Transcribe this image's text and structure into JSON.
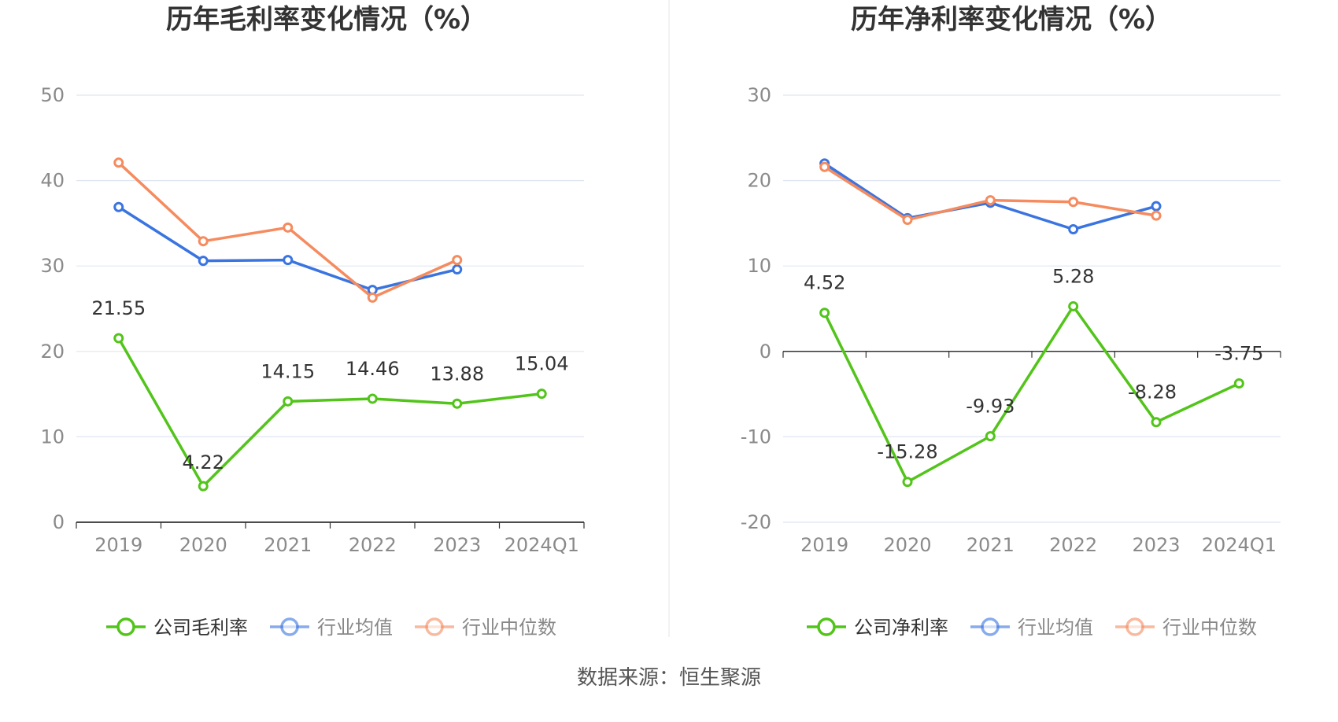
{
  "source_note": "数据来源：恒生聚源",
  "chart_data": [
    {
      "type": "line",
      "title": "历年毛利率变化情况（%）",
      "categories": [
        "2019",
        "2020",
        "2021",
        "2022",
        "2023",
        "2024Q1"
      ],
      "yticks": [
        "50",
        "40",
        "30",
        "20",
        "10",
        "0"
      ],
      "ylim": [
        0,
        50
      ],
      "grid": true,
      "legend_position": "bottom",
      "series": [
        {
          "name": "公司毛利率",
          "color": "#52c41a",
          "values": [
            21.55,
            4.22,
            14.15,
            14.46,
            13.88,
            15.04
          ],
          "labels": [
            "21.55",
            "4.22",
            "14.15",
            "14.46",
            "13.88",
            "15.04"
          ]
        },
        {
          "name": "行业均值",
          "color": "#3a74e0",
          "values": [
            36.9,
            30.6,
            30.7,
            27.2,
            29.6,
            null
          ]
        },
        {
          "name": "行业中位数",
          "color": "#f58b5e",
          "values": [
            42.1,
            32.9,
            34.5,
            26.3,
            30.7,
            null
          ]
        }
      ]
    },
    {
      "type": "line",
      "title": "历年净利率变化情况（%）",
      "categories": [
        "2019",
        "2020",
        "2021",
        "2022",
        "2023",
        "2024Q1"
      ],
      "yticks": [
        "30",
        "20",
        "10",
        "0",
        "-10",
        "-20"
      ],
      "ylim": [
        -20,
        30
      ],
      "grid": true,
      "legend_position": "bottom",
      "series": [
        {
          "name": "公司净利率",
          "color": "#52c41a",
          "values": [
            4.52,
            -15.28,
            -9.93,
            5.28,
            -8.28,
            -3.75
          ],
          "labels": [
            "4.52",
            "-15.28",
            "-9.93",
            "5.28",
            "-8.28",
            "-3.75"
          ]
        },
        {
          "name": "行业均值",
          "color": "#3a74e0",
          "values": [
            22.0,
            15.6,
            17.4,
            14.3,
            17.0,
            null
          ]
        },
        {
          "name": "行业中位数",
          "color": "#f58b5e",
          "values": [
            21.6,
            15.4,
            17.7,
            17.5,
            15.9,
            null
          ]
        }
      ]
    }
  ]
}
